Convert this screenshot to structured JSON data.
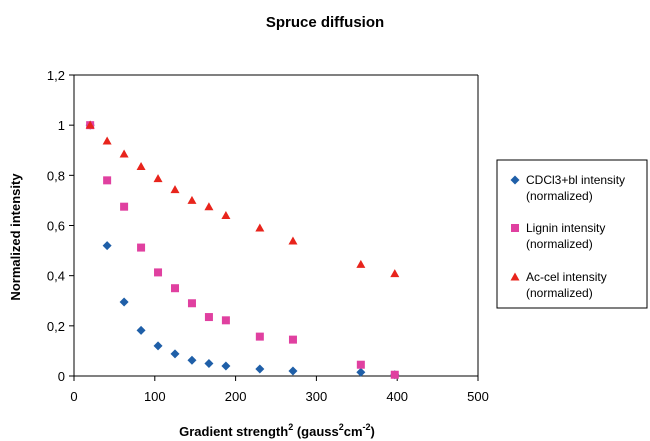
{
  "chart_data": {
    "type": "scatter",
    "title": "Spruce diffusion",
    "xlabel": {
      "main": "Gradient strength",
      "sup1": "2",
      "mid": " (gauss",
      "sup2": "2",
      "mid2": "cm",
      "sup3": "-2",
      "end": ")"
    },
    "ylabel": "Normalized intensity",
    "xlim": [
      0,
      500
    ],
    "ylim": [
      0,
      1.2
    ],
    "xticks": [
      "0",
      "100",
      "200",
      "300",
      "400",
      "500"
    ],
    "yticks": [
      "0",
      "0,2",
      "0,4",
      "0,6",
      "0,8",
      "1",
      "1,2"
    ],
    "grid": false,
    "legend_position": "right",
    "series": [
      {
        "name_lines": [
          "CDCl3+bl intensity",
          "(normalized)"
        ],
        "marker": "diamond",
        "color": "#1f5fa8",
        "points": [
          [
            20,
            1.0
          ],
          [
            41,
            0.52
          ],
          [
            62,
            0.295
          ],
          [
            83,
            0.182
          ],
          [
            104,
            0.12
          ],
          [
            125,
            0.088
          ],
          [
            146,
            0.063
          ],
          [
            167,
            0.05
          ],
          [
            188,
            0.04
          ],
          [
            230,
            0.028
          ],
          [
            271,
            0.02
          ],
          [
            355,
            0.015
          ],
          [
            397,
            0.005
          ]
        ]
      },
      {
        "name_lines": [
          "Lignin intensity",
          "(normalized)"
        ],
        "marker": "square",
        "color": "#e040a0",
        "points": [
          [
            20,
            1.0
          ],
          [
            41,
            0.78
          ],
          [
            62,
            0.675
          ],
          [
            83,
            0.512
          ],
          [
            104,
            0.413
          ],
          [
            125,
            0.35
          ],
          [
            146,
            0.29
          ],
          [
            167,
            0.235
          ],
          [
            188,
            0.222
          ],
          [
            230,
            0.157
          ],
          [
            271,
            0.145
          ],
          [
            355,
            0.045
          ],
          [
            397,
            0.005
          ]
        ]
      },
      {
        "name_lines": [
          "Ac-cel intensity",
          "(normalized)"
        ],
        "marker": "triangle",
        "color": "#e8241c",
        "points": [
          [
            20,
            1.0
          ],
          [
            41,
            0.937
          ],
          [
            62,
            0.885
          ],
          [
            83,
            0.835
          ],
          [
            104,
            0.787
          ],
          [
            125,
            0.743
          ],
          [
            146,
            0.7
          ],
          [
            167,
            0.675
          ],
          [
            188,
            0.64
          ],
          [
            230,
            0.59
          ],
          [
            271,
            0.538
          ],
          [
            355,
            0.445
          ],
          [
            397,
            0.408
          ]
        ]
      }
    ]
  }
}
